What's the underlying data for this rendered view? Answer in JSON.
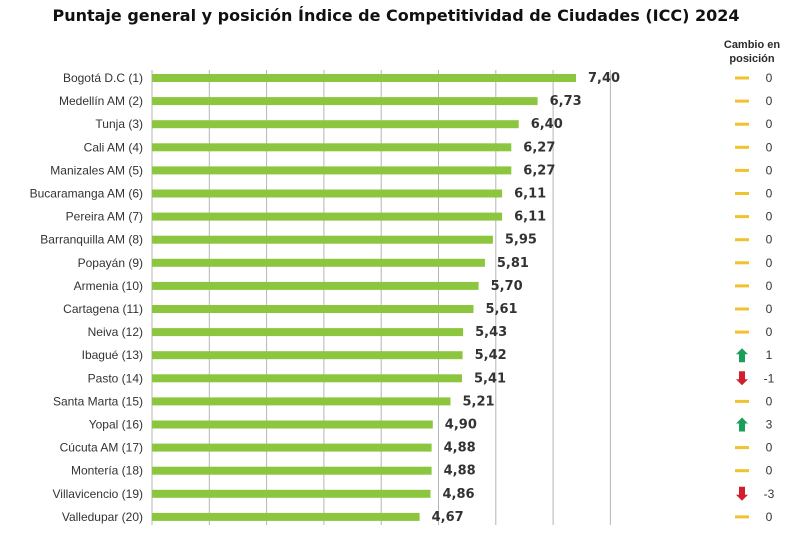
{
  "chart_data": {
    "type": "bar",
    "orientation": "horizontal",
    "title": "Puntaje general y posición Índice de Competitividad de Ciudades (ICC) 2024",
    "change_header": [
      "Cambio en",
      "posición"
    ],
    "xlim": [
      0,
      10
    ],
    "grid": true,
    "bar_color": "#8cc63f",
    "up_color": "#1a9e5a",
    "down_color": "#d0202e",
    "neutral_color": "#f2c12e",
    "categories": [
      "Bogotá D.C (1)",
      "Medellín AM (2)",
      "Tunja (3)",
      "Cali AM (4)",
      "Manizales AM (5)",
      "Bucaramanga AM (6)",
      "Pereira AM (7)",
      "Barranquilla AM (8)",
      "Popayán (9)",
      "Armenia (10)",
      "Cartagena (11)",
      "Neiva (12)",
      "Ibagué (13)",
      "Pasto (14)",
      "Santa Marta (15)",
      "Yopal (16)",
      "Cúcuta AM (17)",
      "Montería (18)",
      "Villavicencio (19)",
      "Valledupar (20)"
    ],
    "values": [
      7.4,
      6.73,
      6.4,
      6.27,
      6.27,
      6.11,
      6.11,
      5.95,
      5.81,
      5.7,
      5.61,
      5.43,
      5.42,
      5.41,
      5.21,
      4.9,
      4.88,
      4.88,
      4.86,
      4.67
    ],
    "value_labels": [
      "7,40",
      "6,73",
      "6,40",
      "6,27",
      "6,27",
      "6,11",
      "6,11",
      "5,95",
      "5,81",
      "5,70",
      "5,61",
      "5,43",
      "5,42",
      "5,41",
      "5,21",
      "4,90",
      "4,88",
      "4,88",
      "4,86",
      "4,67"
    ],
    "position_change": [
      0,
      0,
      0,
      0,
      0,
      0,
      0,
      0,
      0,
      0,
      0,
      0,
      1,
      -1,
      0,
      3,
      0,
      0,
      -3,
      0
    ]
  }
}
